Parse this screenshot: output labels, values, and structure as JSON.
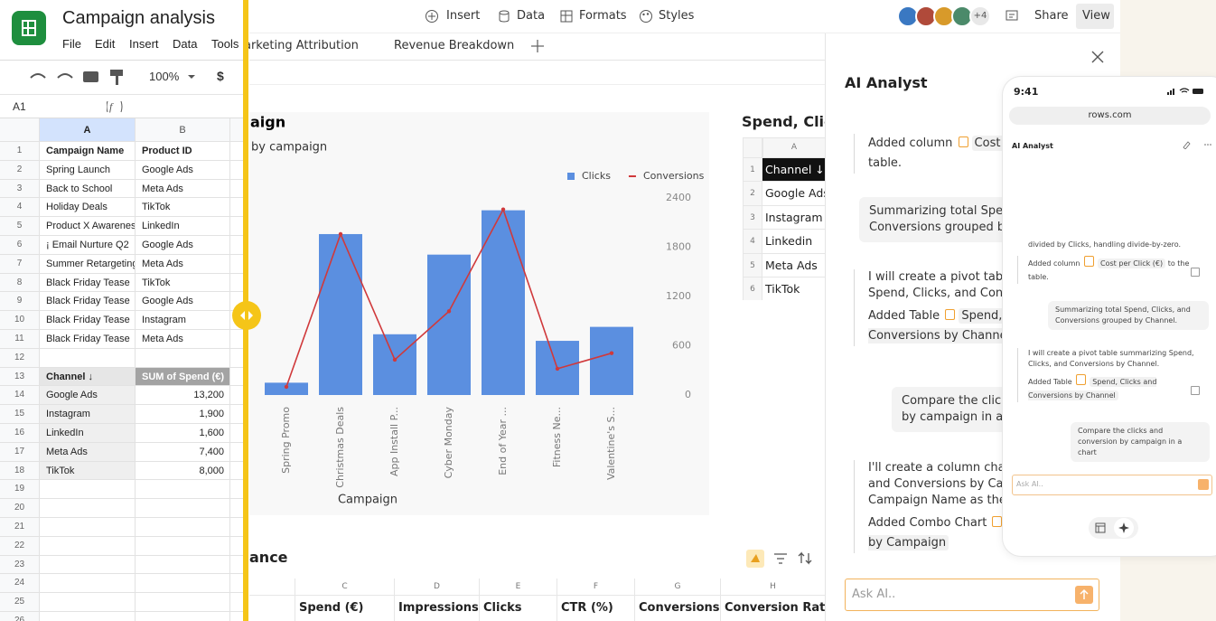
{
  "sheets_app": {
    "title": "Campaign analysis",
    "menu": [
      "File",
      "Edit",
      "Insert",
      "Data",
      "Tools"
    ],
    "zoom": "100%",
    "currency": "$",
    "name_box": "A1",
    "column_headers": [
      "A",
      "B"
    ],
    "rows": [
      {
        "number": 1,
        "cells": [
          "Campaign Name",
          "Product ID"
        ]
      },
      {
        "number": 2,
        "cells": [
          "Spring Launch",
          "Google Ads"
        ]
      },
      {
        "number": 3,
        "cells": [
          "Back to School",
          "Meta Ads"
        ]
      },
      {
        "number": 4,
        "cells": [
          "Holiday Deals",
          "TikTok"
        ]
      },
      {
        "number": 5,
        "cells": [
          "Product X Awareness",
          "LinkedIn"
        ]
      },
      {
        "number": 6,
        "cells": [
          "¡ Email Nurture Q2",
          "Google Ads"
        ]
      },
      {
        "number": 7,
        "cells": [
          "Summer Retargeting",
          "Meta Ads"
        ]
      },
      {
        "number": 8,
        "cells": [
          "Black Friday Tease",
          "TikTok"
        ]
      },
      {
        "number": 9,
        "cells": [
          "Black Friday Tease",
          "Google Ads"
        ]
      },
      {
        "number": 10,
        "cells": [
          "Black Friday Tease",
          "Instagram"
        ]
      },
      {
        "number": 11,
        "cells": [
          "Black Friday Tease",
          "Meta Ads"
        ]
      },
      {
        "number": 12
      },
      {
        "number": 13,
        "cells": [
          "Channel ↓",
          "SUM of Spend (€)"
        ]
      },
      {
        "number": 14,
        "cells": [
          "Google Ads",
          "13,200"
        ]
      },
      {
        "number": 15,
        "cells": [
          "Instagram",
          "1,900"
        ]
      },
      {
        "number": 16,
        "cells": [
          "LinkedIn",
          "1,600"
        ]
      },
      {
        "number": 17,
        "cells": [
          "Meta Ads",
          "7,400"
        ]
      },
      {
        "number": 18,
        "cells": [
          "TikTok",
          "8,000"
        ]
      },
      {
        "number": 19
      },
      {
        "number": 20
      },
      {
        "number": 21
      },
      {
        "number": 22
      },
      {
        "number": 23
      },
      {
        "number": 24
      },
      {
        "number": 25
      },
      {
        "number": 26
      }
    ]
  },
  "rows_app": {
    "toolbar": [
      "Insert",
      "Data",
      "Formats",
      "Styles"
    ],
    "more_collaborators": "+4",
    "share": "Share",
    "view": "View",
    "tabs": [
      "arketing Attribution",
      "Revenue Breakdown"
    ],
    "chart": {
      "type": "combo",
      "title": "aign",
      "subtitle": "by campaign",
      "x_label": "Campaign",
      "categories": [
        "Spring Promo",
        "Christmas Deals",
        "App Install P...",
        "Cyber Monday",
        "End of Year ...",
        "Fitness Ne...",
        "Valentine's S..."
      ],
      "series": [
        {
          "name": "Clicks",
          "kind": "bar",
          "color": "#5b8fe0",
          "values": [
            150,
            1960,
            740,
            1710,
            2250,
            660,
            830
          ]
        },
        {
          "name": "Conversions",
          "kind": "line",
          "color": "#d0393b",
          "values": [
            100,
            1960,
            430,
            1020,
            2260,
            320,
            510
          ]
        }
      ],
      "ylim": [
        0,
        2400
      ],
      "yticks": [
        0,
        600,
        1200,
        1800,
        2400
      ],
      "legend": "top-right"
    },
    "pivot": {
      "title": "Spend, Click",
      "column": "A",
      "rows": [
        {
          "number": 1,
          "cell": "Channel ↓"
        },
        {
          "number": 2,
          "cell": "Google Ads"
        },
        {
          "number": 3,
          "cell": "Instagram"
        },
        {
          "number": 4,
          "cell": "Linkedin"
        },
        {
          "number": 5,
          "cell": "Meta Ads"
        },
        {
          "number": 6,
          "cell": "TikTok"
        }
      ]
    },
    "bottom_table": {
      "title": "ance",
      "columns": [
        "C",
        "D",
        "E",
        "F",
        "G",
        "H"
      ],
      "headers": [
        "Spend (€)",
        "Impressions",
        "Clicks",
        "CTR (%)",
        "Conversions",
        "Conversion Rate ("
      ]
    }
  },
  "ai_panel": {
    "title": "AI Analyst",
    "messages": [
      {
        "role": "ai",
        "text": "divided by Clicks, handling divide-by-zero.",
        "action": "Added column",
        "chip": "Cost per Click (€)",
        "after": "to the table."
      },
      {
        "role": "user",
        "text": "Summarizing total Spend, Clicks, and Conversions grouped by Channel."
      },
      {
        "role": "ai",
        "text": "I will create a pivot table summarizing Spend, Clicks, and Conversions by Channel.",
        "action": "Added Table",
        "chip": "Spend, Clicks and Conversions by Channel"
      },
      {
        "role": "user",
        "text": "Compare the clicks and conversion by campaign in a chart"
      },
      {
        "role": "ai",
        "text": "I'll create a column chart comparing Clicks and Conversions by Campaign, using Campaign Name as the x-axis.",
        "action": "Added Combo Chart",
        "chip": "Click vs Conversion by Campaign"
      }
    ],
    "input_placeholder": "Ask AI.."
  },
  "phone": {
    "time": "9:41",
    "url": "rows.com",
    "title": "AI Analyst",
    "input_placeholder": "Ask AI.."
  }
}
